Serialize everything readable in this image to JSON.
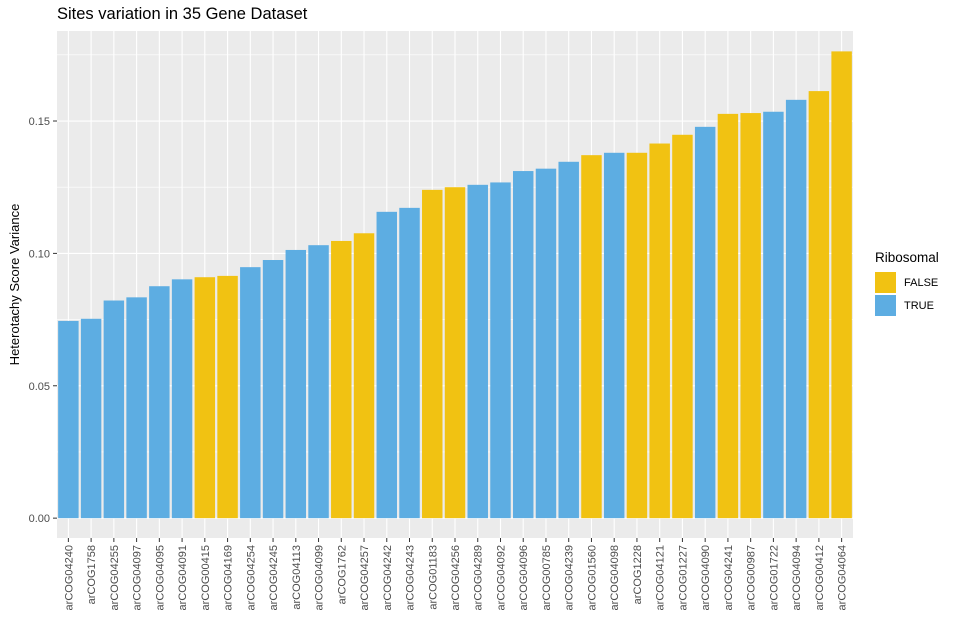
{
  "chart_data": {
    "type": "bar",
    "title": "Sites variation in 35 Gene Dataset",
    "xlabel": "",
    "ylabel": "Heterotachy Score Variance",
    "ylim": [
      -0.0075,
      0.184
    ],
    "yticks": [
      "0.00",
      "0.05",
      "0.10",
      "0.15"
    ],
    "yticks_values": [
      0,
      0.05,
      0.1,
      0.15
    ],
    "grid": true,
    "legend": {
      "title": "Ribosomal",
      "placement": "right",
      "entries": [
        "FALSE",
        "TRUE"
      ]
    },
    "colors": {
      "FALSE": "#f1c212",
      "TRUE": "#5dade2",
      "panel": "#ebebeb",
      "grid": "#ffffff"
    },
    "categories": [
      "arCOG04240",
      "arCOG1758",
      "arCOG04255",
      "arCOG04097",
      "arCOG04095",
      "arCOG04091",
      "arCOG00415",
      "arCOG04169",
      "arCOG04254",
      "arCOG04245",
      "arCOG04113",
      "arCOG04099",
      "arCOG1762",
      "arCOG04257",
      "arCOG04242",
      "arCOG04243",
      "arCOG01183",
      "arCOG04256",
      "arCOG04289",
      "arCOG04092",
      "arCOG04096",
      "arCOG00785",
      "arCOG04239",
      "arCOG01560",
      "arCOG04098",
      "arCOG1228",
      "arCOG04121",
      "arCOG01227",
      "arCOG04090",
      "arCOG04241",
      "arCOG00987",
      "arCOG01722",
      "arCOG04094",
      "arCOG00412",
      "arCOG04064"
    ],
    "values": [
      0.0745,
      0.0753,
      0.0822,
      0.0834,
      0.0876,
      0.0902,
      0.091,
      0.0915,
      0.0948,
      0.0975,
      0.1013,
      0.1031,
      0.1047,
      0.1076,
      0.1157,
      0.1172,
      0.124,
      0.125,
      0.1259,
      0.1268,
      0.1311,
      0.132,
      0.1346,
      0.1371,
      0.138,
      0.138,
      0.1415,
      0.1448,
      0.1478,
      0.1527,
      0.153,
      0.1535,
      0.158,
      0.1613,
      0.1763
    ],
    "ribosomal": [
      "TRUE",
      "TRUE",
      "TRUE",
      "TRUE",
      "TRUE",
      "TRUE",
      "FALSE",
      "FALSE",
      "TRUE",
      "TRUE",
      "TRUE",
      "TRUE",
      "FALSE",
      "FALSE",
      "TRUE",
      "TRUE",
      "FALSE",
      "FALSE",
      "TRUE",
      "TRUE",
      "TRUE",
      "TRUE",
      "TRUE",
      "FALSE",
      "TRUE",
      "FALSE",
      "FALSE",
      "FALSE",
      "TRUE",
      "FALSE",
      "FALSE",
      "TRUE",
      "TRUE",
      "FALSE",
      "FALSE"
    ]
  }
}
